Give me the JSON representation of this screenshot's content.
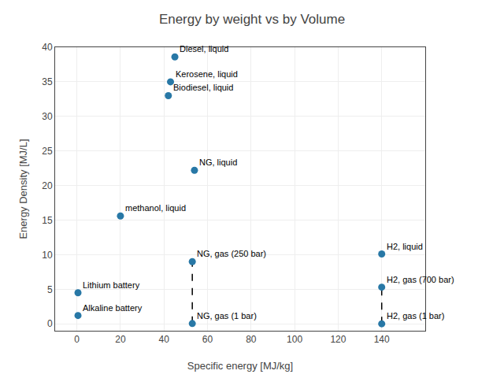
{
  "chart_data": {
    "type": "scatter",
    "title": "Energy by weight vs by Volume",
    "xlabel": "Specific energy [MJ/kg]",
    "ylabel": "Energy Density [MJ/L]",
    "xlim": [
      -10,
      160
    ],
    "ylim": [
      -1,
      40
    ],
    "xticks": [
      0,
      20,
      40,
      60,
      80,
      100,
      120,
      140
    ],
    "yticks": [
      0,
      5,
      10,
      15,
      20,
      25,
      30,
      35,
      40
    ],
    "x": [
      45,
      43,
      42,
      54,
      20,
      53,
      53,
      0.5,
      0.5,
      140,
      140,
      140
    ],
    "values": [
      38.6,
      35.0,
      33.0,
      22.2,
      15.6,
      9.0,
      0.04,
      4.5,
      1.2,
      10.1,
      5.3,
      0.01
    ],
    "point_labels": [
      "Diesel, liquid",
      "Kerosene, liquid",
      "Biodiesel, liquid",
      "NG, liquid",
      "methanol, liquid",
      "NG, gas (250 bar)",
      "NG, gas (1 bar)",
      "Lithium battery",
      "Alkaline battery",
      "H2, liquid",
      "H2, gas (700 bar)",
      "H2, gas (1 bar)"
    ],
    "color": "#2878a6",
    "marker": "circle",
    "grid": true,
    "lines": [
      {
        "x": 53,
        "y_top": 9.0,
        "y_bottom": 0.04,
        "line_style": "dashed",
        "color": "black"
      },
      {
        "x": 140,
        "y_top": 5.3,
        "y_bottom": 0.01,
        "line_style": "dashed",
        "color": "black"
      }
    ]
  }
}
